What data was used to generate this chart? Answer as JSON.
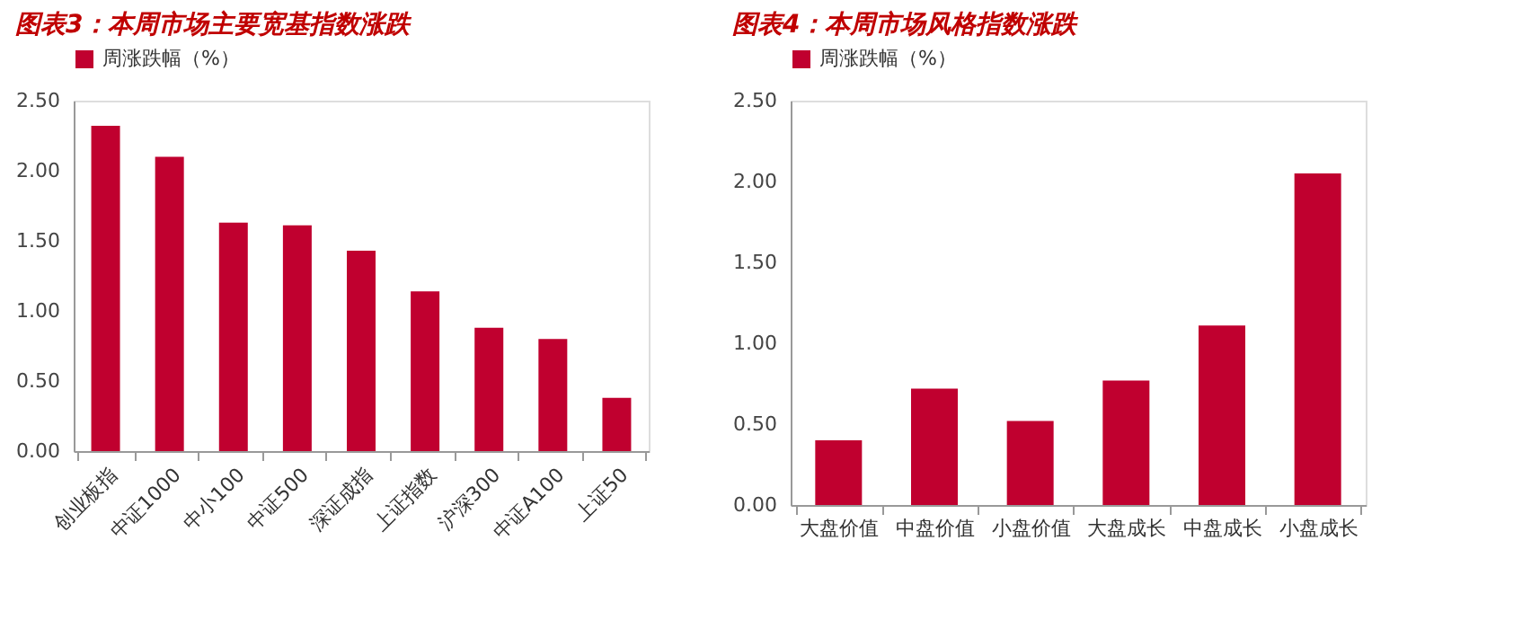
{
  "chart_data": [
    {
      "type": "bar",
      "title": "图表3：本周市场主要宽基指数涨跌",
      "categories": [
        "创业板指",
        "中证1000",
        "中小100",
        "中证500",
        "深证成指",
        "上证指数",
        "沪深300",
        "中证A100",
        "上证50"
      ],
      "series": [
        {
          "name": "周涨跌幅（%）",
          "color": "#c0002f",
          "values": [
            2.32,
            2.1,
            1.63,
            1.61,
            1.43,
            1.14,
            0.88,
            0.8,
            0.38
          ]
        }
      ],
      "ylim": [
        0,
        2.5
      ],
      "yticks": [
        {
          "value": 0,
          "label": "0.00"
        },
        {
          "value": 0.5,
          "label": "0.50"
        },
        {
          "value": 1,
          "label": "1.00"
        },
        {
          "value": 1.5,
          "label": "1.50"
        },
        {
          "value": 2,
          "label": "2.00"
        },
        {
          "value": 2.5,
          "label": "2.50"
        }
      ],
      "grid": false,
      "legend": "top"
    },
    {
      "type": "bar",
      "title": "图表4：本周市场风格指数涨跌",
      "categories": [
        "大盘价值",
        "中盘价值",
        "小盘价值",
        "大盘成长",
        "中盘成长",
        "小盘成长"
      ],
      "series": [
        {
          "name": "周涨跌幅（%）",
          "color": "#c0002f",
          "values": [
            0.4,
            0.72,
            0.52,
            0.77,
            1.11,
            2.05
          ]
        }
      ],
      "ylim": [
        0,
        2.5
      ],
      "yticks": [
        {
          "value": 0,
          "label": "0.00"
        },
        {
          "value": 0.5,
          "label": "0.50"
        },
        {
          "value": 1,
          "label": "1.00"
        },
        {
          "value": 1.5,
          "label": "1.50"
        },
        {
          "value": 2,
          "label": "2.00"
        },
        {
          "value": 2.5,
          "label": "2.50"
        }
      ],
      "grid": false,
      "legend": "top"
    }
  ]
}
